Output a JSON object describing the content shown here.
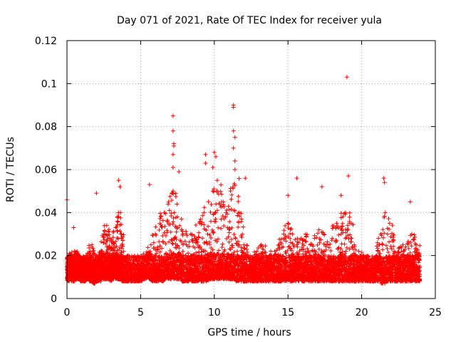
{
  "chart_data": {
    "type": "scatter",
    "title": "Day 071 of 2021, Rate Of TEC Index for receiver yula",
    "xlabel": "GPS time / hours",
    "ylabel": "ROTI / TECUs",
    "xlim": [
      0,
      25
    ],
    "ylim": [
      0,
      0.12
    ],
    "xticks": [
      0,
      5,
      10,
      15,
      20,
      25
    ],
    "xtick_labels": [
      "0",
      "5",
      "10",
      "15",
      "20",
      "25"
    ],
    "yticks": [
      0,
      0.02,
      0.04,
      0.06,
      0.08,
      0.1,
      0.12
    ],
    "ytick_labels": [
      "0",
      "0.02",
      "0.04",
      "0.06",
      "0.08",
      "0.1",
      "0.12"
    ],
    "grid": true,
    "marker": "+",
    "series_color": "#ff0000",
    "series": [
      {
        "name": "ROTI",
        "x": [
          0.0,
          0.15,
          0.3,
          0.5,
          0.7,
          0.9,
          1.1,
          1.3,
          1.5,
          1.7,
          1.9,
          2.1,
          2.3,
          2.5,
          2.7,
          2.9,
          3.1,
          3.3,
          3.5,
          3.7,
          3.9,
          4.2,
          4.5,
          4.8,
          5.1,
          5.4,
          5.7,
          6.0,
          6.3,
          6.6,
          6.9,
          7.2,
          7.5,
          7.8,
          8.1,
          8.4,
          8.7,
          9.0,
          9.3,
          9.6,
          9.9,
          10.2,
          10.5,
          10.8,
          11.1,
          11.4,
          11.7,
          12.0,
          12.3,
          12.6,
          12.9,
          13.2,
          13.5,
          13.8,
          14.1,
          14.4,
          14.7,
          15.0,
          15.3,
          15.6,
          15.9,
          16.2,
          16.5,
          16.8,
          17.1,
          17.4,
          17.7,
          18.0,
          18.3,
          18.6,
          18.9,
          19.2,
          19.5,
          19.8,
          20.1,
          20.4,
          20.7,
          21.0,
          21.3,
          21.6,
          21.9,
          22.2,
          22.5,
          22.8,
          23.1,
          23.4,
          23.7,
          23.95
        ],
        "y": [
          0.012,
          0.018,
          0.015,
          0.022,
          0.013,
          0.017,
          0.014,
          0.02,
          0.016,
          0.025,
          0.018,
          0.015,
          0.022,
          0.03,
          0.034,
          0.028,
          0.02,
          0.033,
          0.04,
          0.03,
          0.018,
          0.015,
          0.012,
          0.016,
          0.013,
          0.02,
          0.025,
          0.03,
          0.035,
          0.04,
          0.045,
          0.05,
          0.038,
          0.032,
          0.025,
          0.03,
          0.028,
          0.035,
          0.04,
          0.045,
          0.05,
          0.055,
          0.045,
          0.04,
          0.05,
          0.06,
          0.04,
          0.025,
          0.02,
          0.018,
          0.022,
          0.025,
          0.02,
          0.018,
          0.022,
          0.025,
          0.03,
          0.035,
          0.03,
          0.025,
          0.028,
          0.03,
          0.025,
          0.028,
          0.032,
          0.03,
          0.025,
          0.028,
          0.035,
          0.03,
          0.04,
          0.035,
          0.025,
          0.022,
          0.02,
          0.018,
          0.015,
          0.02,
          0.03,
          0.04,
          0.035,
          0.022,
          0.018,
          0.025,
          0.02,
          0.03,
          0.025,
          0.015
        ],
        "y_floor": [
          0.008,
          0.009,
          0.008,
          0.009,
          0.009,
          0.008,
          0.008,
          0.009,
          0.008,
          0.007,
          0.008,
          0.008,
          0.009,
          0.009,
          0.009,
          0.008,
          0.009,
          0.009,
          0.009,
          0.008,
          0.008,
          0.008,
          0.008,
          0.008,
          0.009,
          0.009,
          0.008,
          0.008,
          0.008,
          0.009,
          0.009,
          0.009,
          0.009,
          0.008,
          0.008,
          0.008,
          0.008,
          0.008,
          0.008,
          0.009,
          0.009,
          0.009,
          0.009,
          0.009,
          0.009,
          0.008,
          0.008,
          0.008,
          0.008,
          0.008,
          0.008,
          0.008,
          0.008,
          0.008,
          0.008,
          0.008,
          0.008,
          0.008,
          0.008,
          0.008,
          0.008,
          0.008,
          0.008,
          0.008,
          0.008,
          0.008,
          0.008,
          0.008,
          0.008,
          0.008,
          0.008,
          0.008,
          0.008,
          0.008,
          0.008,
          0.008,
          0.008,
          0.008,
          0.007,
          0.008,
          0.008,
          0.008,
          0.008,
          0.008,
          0.008,
          0.008,
          0.008,
          0.008
        ],
        "outliers": [
          {
            "x": 0.0,
            "y": 0.046
          },
          {
            "x": 0.45,
            "y": 0.033
          },
          {
            "x": 2.0,
            "y": 0.049
          },
          {
            "x": 3.5,
            "y": 0.055
          },
          {
            "x": 3.6,
            "y": 0.052
          },
          {
            "x": 5.6,
            "y": 0.053
          },
          {
            "x": 7.2,
            "y": 0.085
          },
          {
            "x": 7.2,
            "y": 0.078
          },
          {
            "x": 7.25,
            "y": 0.072
          },
          {
            "x": 7.25,
            "y": 0.071
          },
          {
            "x": 7.2,
            "y": 0.067
          },
          {
            "x": 7.2,
            "y": 0.061
          },
          {
            "x": 7.6,
            "y": 0.059
          },
          {
            "x": 9.4,
            "y": 0.067
          },
          {
            "x": 9.4,
            "y": 0.063
          },
          {
            "x": 10.0,
            "y": 0.068
          },
          {
            "x": 10.1,
            "y": 0.066
          },
          {
            "x": 9.9,
            "y": 0.061
          },
          {
            "x": 11.3,
            "y": 0.09
          },
          {
            "x": 11.3,
            "y": 0.089
          },
          {
            "x": 11.3,
            "y": 0.078
          },
          {
            "x": 11.4,
            "y": 0.075
          },
          {
            "x": 11.3,
            "y": 0.07
          },
          {
            "x": 11.4,
            "y": 0.064
          },
          {
            "x": 12.1,
            "y": 0.056
          },
          {
            "x": 15.0,
            "y": 0.048
          },
          {
            "x": 15.6,
            "y": 0.056
          },
          {
            "x": 17.3,
            "y": 0.052
          },
          {
            "x": 18.6,
            "y": 0.048
          },
          {
            "x": 19.0,
            "y": 0.103
          },
          {
            "x": 19.1,
            "y": 0.057
          },
          {
            "x": 21.5,
            "y": 0.056
          },
          {
            "x": 21.55,
            "y": 0.054
          },
          {
            "x": 23.3,
            "y": 0.045
          }
        ]
      }
    ]
  }
}
